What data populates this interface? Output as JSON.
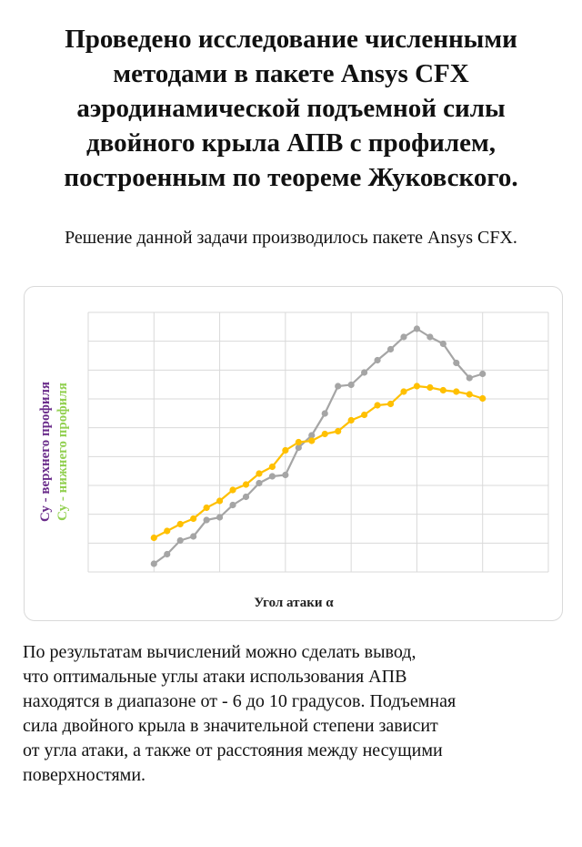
{
  "heading": {
    "lines": [
      "Проведено исследование численными",
      "методами в пакете Ansys CFX",
      "аэродинамической подъемной силы",
      "двойного крыла АПВ с профилем,",
      "построенным по теореме Жуковского."
    ]
  },
  "subtitle": "Решение данной задачи производилось пакете Ansys CFX.",
  "chart_data": {
    "type": "line",
    "xlabel": "Угол атаки α",
    "ylabel_1": "Су - верхнего профиля",
    "ylabel_2": "Су - нижнего профиля",
    "ylabel_1_color": "#6a2c8a",
    "ylabel_2_color": "#92d050",
    "grid": true,
    "x": [
      0,
      1,
      2,
      3,
      4,
      5,
      6,
      7,
      8,
      9,
      10,
      11,
      12,
      13,
      14,
      15,
      16,
      17,
      18,
      19,
      20,
      21,
      22,
      23,
      24,
      25
    ],
    "series": [
      {
        "color": "#a5a5a5",
        "values": [
          0.3,
          0.65,
          1.15,
          1.3,
          1.9,
          2.0,
          2.45,
          2.75,
          3.25,
          3.5,
          3.55,
          4.55,
          5.0,
          5.8,
          6.8,
          6.85,
          7.3,
          7.75,
          8.15,
          8.6,
          8.9,
          8.6,
          8.35,
          7.65,
          7.1,
          7.25
        ]
      },
      {
        "color": "#ffc000",
        "values": [
          1.25,
          1.5,
          1.75,
          1.95,
          2.35,
          2.6,
          3.0,
          3.2,
          3.6,
          3.85,
          4.45,
          4.75,
          4.8,
          5.05,
          5.15,
          5.55,
          5.75,
          6.1,
          6.15,
          6.6,
          6.8,
          6.75,
          6.65,
          6.6,
          6.5,
          6.35
        ]
      }
    ],
    "ylim": [
      0,
      9.5
    ]
  },
  "conclusion": {
    "lines": [
      "По результатам вычислений можно сделать вывод,",
      "что оптимальные углы атаки использования АПВ",
      "находятся в диапазоне от - 6 до 10 градусов. Подъемная",
      "сила двойного крыла в значительной степени зависит",
      "от угла атаки, а также от расстояния между несущими",
      "поверхностями."
    ]
  }
}
